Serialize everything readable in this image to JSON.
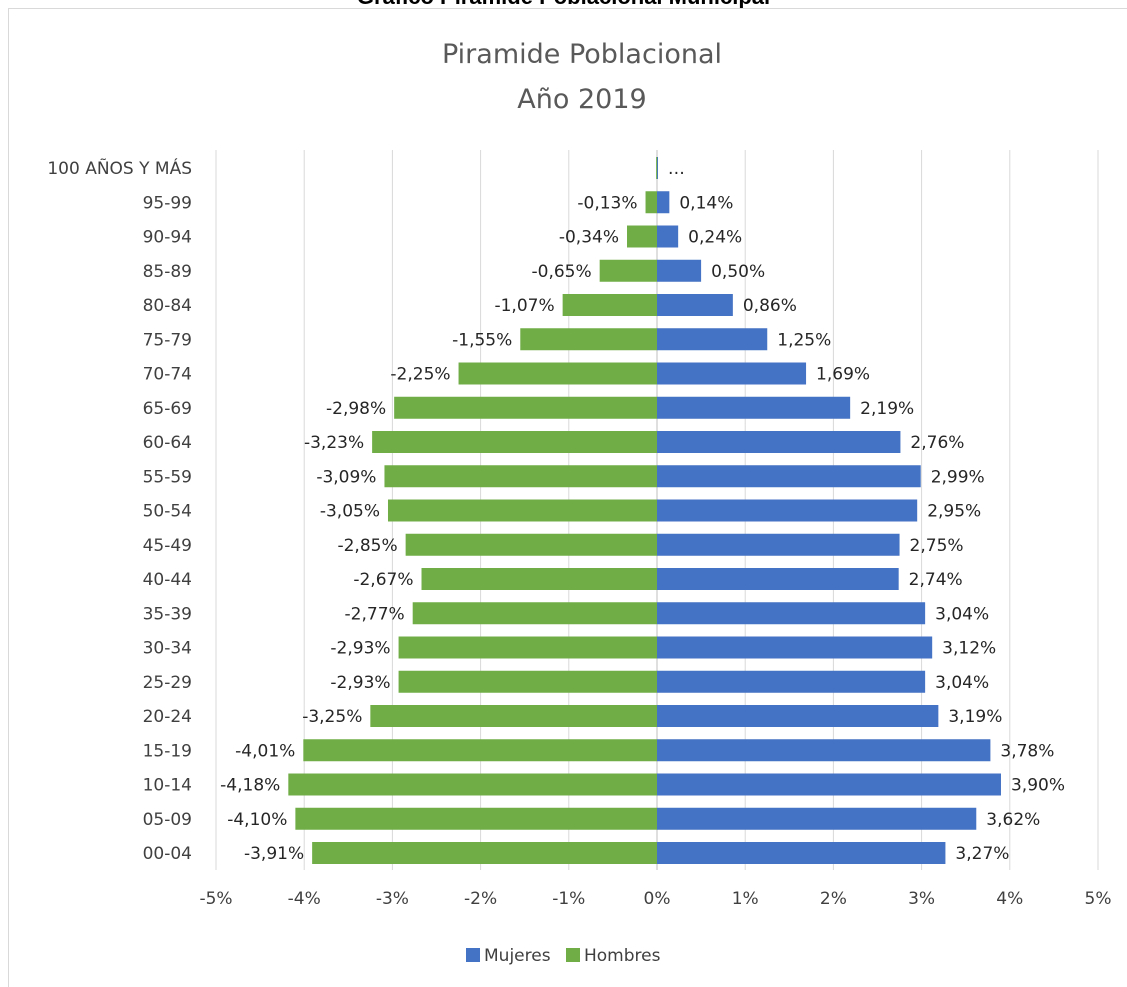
{
  "page_heading": "Gráfico Pirámide Poblacional Municipal",
  "chart_data": {
    "type": "bar",
    "orientation": "horizontal",
    "title": "Piramide Poblacional",
    "subtitle": "Año 2019",
    "categories": [
      "100 AÑOS Y MÁS",
      "95-99",
      "90-94",
      "85-89",
      "80-84",
      "75-79",
      "70-74",
      "65-69",
      "60-64",
      "55-59",
      "50-54",
      "45-49",
      "40-44",
      "35-39",
      "30-34",
      "25-29",
      "20-24",
      "15-19",
      "10-14",
      "05-09",
      "00-04"
    ],
    "series": [
      {
        "name": "Mujeres",
        "color": "#4472c4",
        "values": [
          0.01,
          0.14,
          0.24,
          0.5,
          0.86,
          1.25,
          1.69,
          2.19,
          2.76,
          2.99,
          2.95,
          2.75,
          2.74,
          3.04,
          3.12,
          3.04,
          3.19,
          3.78,
          3.9,
          3.62,
          3.27
        ],
        "labels": [
          "…",
          "0,14%",
          "0,24%",
          "0,50%",
          "0,86%",
          "1,25%",
          "1,69%",
          "2,19%",
          "2,76%",
          "2,99%",
          "2,95%",
          "2,75%",
          "2,74%",
          "3,04%",
          "3,12%",
          "3,04%",
          "3,19%",
          "3,78%",
          "3,90%",
          "3,62%",
          "3,27%"
        ]
      },
      {
        "name": "Hombres",
        "color": "#70ad47",
        "values": [
          -0.01,
          -0.13,
          -0.34,
          -0.65,
          -1.07,
          -1.55,
          -2.25,
          -2.98,
          -3.23,
          -3.09,
          -3.05,
          -2.85,
          -2.67,
          -2.77,
          -2.93,
          -2.93,
          -3.25,
          -4.01,
          -4.18,
          -4.1,
          -3.91
        ],
        "labels": [
          "",
          "-0,13%",
          "-0,34%",
          "-0,65%",
          "-1,07%",
          "-1,55%",
          "-2,25%",
          "-2,98%",
          "-3,23%",
          "-3,09%",
          "-3,05%",
          "-2,85%",
          "-2,67%",
          "-2,77%",
          "-2,93%",
          "-2,93%",
          "-3,25%",
          "-4,01%",
          "-4,18%",
          "-4,10%",
          "-3,91%"
        ]
      }
    ],
    "xlim": [
      -5,
      5
    ],
    "xticks": [
      -5,
      -4,
      -3,
      -2,
      -1,
      0,
      1,
      2,
      3,
      4,
      5
    ],
    "xtick_labels": [
      "-5%",
      "-4%",
      "-3%",
      "-2%",
      "-1%",
      "0%",
      "1%",
      "2%",
      "3%",
      "4%",
      "5%"
    ],
    "grid": true,
    "legend_position": "bottom"
  }
}
